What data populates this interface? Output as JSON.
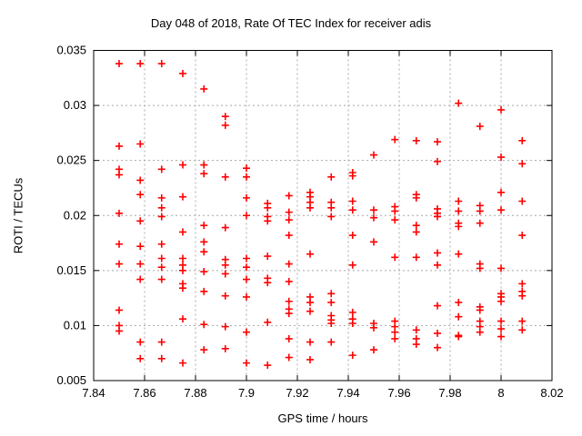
{
  "title": "Day 048 of 2018, Rate Of TEC Index for receiver adis",
  "xlabel": "GPS time / hours",
  "ylabel": "ROTI / TECUs",
  "chart_data": {
    "type": "scatter",
    "marker": "plus",
    "marker_color": "#ff0000",
    "grid": true,
    "grid_color": "#a8a8a8",
    "border_color": "#000000",
    "xlim": [
      7.84,
      8.02
    ],
    "ylim": [
      0.005,
      0.035
    ],
    "xticks": [
      {
        "value": 7.84,
        "label": "7.84"
      },
      {
        "value": 7.86,
        "label": "7.86"
      },
      {
        "value": 7.88,
        "label": "7.88"
      },
      {
        "value": 7.9,
        "label": "7.9"
      },
      {
        "value": 7.92,
        "label": "7.92"
      },
      {
        "value": 7.94,
        "label": "7.94"
      },
      {
        "value": 7.96,
        "label": "7.96"
      },
      {
        "value": 7.98,
        "label": "7.98"
      },
      {
        "value": 8.0,
        "label": "8"
      },
      {
        "value": 8.02,
        "label": "8.02"
      }
    ],
    "yticks": [
      {
        "value": 0.005,
        "label": "0.005"
      },
      {
        "value": 0.01,
        "label": "0.01"
      },
      {
        "value": 0.015,
        "label": "0.015"
      },
      {
        "value": 0.02,
        "label": "0.02"
      },
      {
        "value": 0.025,
        "label": "0.025"
      },
      {
        "value": 0.03,
        "label": "0.03"
      },
      {
        "value": 0.035,
        "label": "0.035"
      }
    ],
    "points": [
      [
        7.85,
        0.0338
      ],
      [
        7.85,
        0.0263
      ],
      [
        7.85,
        0.0242
      ],
      [
        7.85,
        0.0237
      ],
      [
        7.85,
        0.0202
      ],
      [
        7.85,
        0.0174
      ],
      [
        7.85,
        0.0156
      ],
      [
        7.85,
        0.0114
      ],
      [
        7.85,
        0.01
      ],
      [
        7.85,
        0.0095
      ],
      [
        7.8583,
        0.0338
      ],
      [
        7.8583,
        0.0265
      ],
      [
        7.8583,
        0.0232
      ],
      [
        7.8583,
        0.0219
      ],
      [
        7.8583,
        0.0195
      ],
      [
        7.8583,
        0.0172
      ],
      [
        7.8583,
        0.0156
      ],
      [
        7.8583,
        0.0142
      ],
      [
        7.8583,
        0.0085
      ],
      [
        7.8583,
        0.007
      ],
      [
        7.8667,
        0.0338
      ],
      [
        7.8667,
        0.0242
      ],
      [
        7.8667,
        0.0216
      ],
      [
        7.8667,
        0.0207
      ],
      [
        7.8667,
        0.0199
      ],
      [
        7.8667,
        0.0174
      ],
      [
        7.8667,
        0.0161
      ],
      [
        7.8667,
        0.0153
      ],
      [
        7.8667,
        0.0142
      ],
      [
        7.8667,
        0.0085
      ],
      [
        7.8667,
        0.007
      ],
      [
        7.875,
        0.0329
      ],
      [
        7.875,
        0.0246
      ],
      [
        7.875,
        0.0217
      ],
      [
        7.875,
        0.0185
      ],
      [
        7.875,
        0.0161
      ],
      [
        7.875,
        0.0155
      ],
      [
        7.875,
        0.015
      ],
      [
        7.875,
        0.0138
      ],
      [
        7.875,
        0.0134
      ],
      [
        7.875,
        0.0106
      ],
      [
        7.875,
        0.0066
      ],
      [
        7.8833,
        0.0315
      ],
      [
        7.8833,
        0.0246
      ],
      [
        7.8833,
        0.0238
      ],
      [
        7.8833,
        0.0191
      ],
      [
        7.8833,
        0.0176
      ],
      [
        7.8833,
        0.0167
      ],
      [
        7.8833,
        0.0149
      ],
      [
        7.8833,
        0.0131
      ],
      [
        7.8833,
        0.0101
      ],
      [
        7.8833,
        0.0078
      ],
      [
        7.8917,
        0.029
      ],
      [
        7.8917,
        0.0282
      ],
      [
        7.8917,
        0.0235
      ],
      [
        7.8917,
        0.0189
      ],
      [
        7.8917,
        0.016
      ],
      [
        7.8917,
        0.0155
      ],
      [
        7.8917,
        0.0147
      ],
      [
        7.8917,
        0.0127
      ],
      [
        7.8917,
        0.0099
      ],
      [
        7.8917,
        0.0079
      ],
      [
        7.9,
        0.0243
      ],
      [
        7.9,
        0.0235
      ],
      [
        7.9,
        0.0216
      ],
      [
        7.9,
        0.02
      ],
      [
        7.9,
        0.0161
      ],
      [
        7.9,
        0.0153
      ],
      [
        7.9,
        0.0142
      ],
      [
        7.9,
        0.0126
      ],
      [
        7.9,
        0.0094
      ],
      [
        7.9,
        0.0066
      ],
      [
        7.9083,
        0.0211
      ],
      [
        7.9083,
        0.0207
      ],
      [
        7.9083,
        0.0199
      ],
      [
        7.9083,
        0.0195
      ],
      [
        7.9083,
        0.0163
      ],
      [
        7.9083,
        0.0143
      ],
      [
        7.9083,
        0.0139
      ],
      [
        7.9083,
        0.0103
      ],
      [
        7.9083,
        0.0064
      ],
      [
        7.9167,
        0.0218
      ],
      [
        7.9167,
        0.0203
      ],
      [
        7.9167,
        0.0196
      ],
      [
        7.9167,
        0.0182
      ],
      [
        7.9167,
        0.0156
      ],
      [
        7.9167,
        0.014
      ],
      [
        7.9167,
        0.0122
      ],
      [
        7.9167,
        0.0115
      ],
      [
        7.9167,
        0.0111
      ],
      [
        7.9167,
        0.0088
      ],
      [
        7.9167,
        0.0071
      ],
      [
        7.925,
        0.0221
      ],
      [
        7.925,
        0.0217
      ],
      [
        7.925,
        0.0212
      ],
      [
        7.925,
        0.0207
      ],
      [
        7.925,
        0.0165
      ],
      [
        7.925,
        0.0126
      ],
      [
        7.925,
        0.0121
      ],
      [
        7.925,
        0.0113
      ],
      [
        7.925,
        0.0085
      ],
      [
        7.925,
        0.0069
      ],
      [
        7.9333,
        0.0235
      ],
      [
        7.9333,
        0.0212
      ],
      [
        7.9333,
        0.0207
      ],
      [
        7.9333,
        0.0199
      ],
      [
        7.9333,
        0.0129
      ],
      [
        7.9333,
        0.0121
      ],
      [
        7.9333,
        0.0109
      ],
      [
        7.9333,
        0.0105
      ],
      [
        7.9333,
        0.0102
      ],
      [
        7.9333,
        0.0085
      ],
      [
        7.9417,
        0.0239
      ],
      [
        7.9417,
        0.0236
      ],
      [
        7.9417,
        0.0213
      ],
      [
        7.9417,
        0.0205
      ],
      [
        7.9417,
        0.0182
      ],
      [
        7.9417,
        0.0155
      ],
      [
        7.9417,
        0.0112
      ],
      [
        7.9417,
        0.0106
      ],
      [
        7.9417,
        0.0102
      ],
      [
        7.9417,
        0.0073
      ],
      [
        7.95,
        0.0255
      ],
      [
        7.95,
        0.0205
      ],
      [
        7.95,
        0.0198
      ],
      [
        7.95,
        0.0176
      ],
      [
        7.95,
        0.0102
      ],
      [
        7.95,
        0.0098
      ],
      [
        7.95,
        0.0078
      ],
      [
        7.9583,
        0.0269
      ],
      [
        7.9583,
        0.0208
      ],
      [
        7.9583,
        0.0204
      ],
      [
        7.9583,
        0.0196
      ],
      [
        7.9583,
        0.0162
      ],
      [
        7.9583,
        0.0104
      ],
      [
        7.9583,
        0.0099
      ],
      [
        7.9583,
        0.0094
      ],
      [
        7.9583,
        0.0088
      ],
      [
        7.9667,
        0.0268
      ],
      [
        7.9667,
        0.0219
      ],
      [
        7.9667,
        0.0216
      ],
      [
        7.9667,
        0.0191
      ],
      [
        7.9667,
        0.0185
      ],
      [
        7.9667,
        0.0162
      ],
      [
        7.9667,
        0.0096
      ],
      [
        7.9667,
        0.0088
      ],
      [
        7.9667,
        0.0083
      ],
      [
        7.975,
        0.0267
      ],
      [
        7.975,
        0.0249
      ],
      [
        7.975,
        0.0206
      ],
      [
        7.975,
        0.0202
      ],
      [
        7.975,
        0.0199
      ],
      [
        7.975,
        0.0166
      ],
      [
        7.975,
        0.0155
      ],
      [
        7.975,
        0.0118
      ],
      [
        7.975,
        0.0093
      ],
      [
        7.975,
        0.008
      ],
      [
        7.9833,
        0.0302
      ],
      [
        7.9833,
        0.0213
      ],
      [
        7.9833,
        0.0204
      ],
      [
        7.9833,
        0.0193
      ],
      [
        7.9833,
        0.019
      ],
      [
        7.9833,
        0.0165
      ],
      [
        7.9833,
        0.0121
      ],
      [
        7.9833,
        0.0108
      ],
      [
        7.9833,
        0.0091
      ],
      [
        7.9833,
        0.009
      ],
      [
        7.9917,
        0.0281
      ],
      [
        7.9917,
        0.0209
      ],
      [
        7.9917,
        0.0204
      ],
      [
        7.9917,
        0.0193
      ],
      [
        7.9917,
        0.0156
      ],
      [
        7.9917,
        0.0152
      ],
      [
        7.9917,
        0.0117
      ],
      [
        7.9917,
        0.0114
      ],
      [
        7.9917,
        0.0104
      ],
      [
        7.9917,
        0.0099
      ],
      [
        7.9917,
        0.0094
      ],
      [
        8.0,
        0.0296
      ],
      [
        8.0,
        0.0253
      ],
      [
        8.0,
        0.0221
      ],
      [
        8.0,
        0.0205
      ],
      [
        8.0,
        0.0152
      ],
      [
        8.0,
        0.0129
      ],
      [
        8.0,
        0.0126
      ],
      [
        8.0,
        0.0122
      ],
      [
        8.0,
        0.0104
      ],
      [
        8.0,
        0.0097
      ],
      [
        8.0,
        0.009
      ],
      [
        8.0083,
        0.0268
      ],
      [
        8.0083,
        0.0247
      ],
      [
        8.0083,
        0.0213
      ],
      [
        8.0083,
        0.0182
      ],
      [
        8.0083,
        0.0138
      ],
      [
        8.0083,
        0.0131
      ],
      [
        8.0083,
        0.0127
      ],
      [
        8.0083,
        0.0104
      ],
      [
        8.0083,
        0.0096
      ]
    ]
  }
}
